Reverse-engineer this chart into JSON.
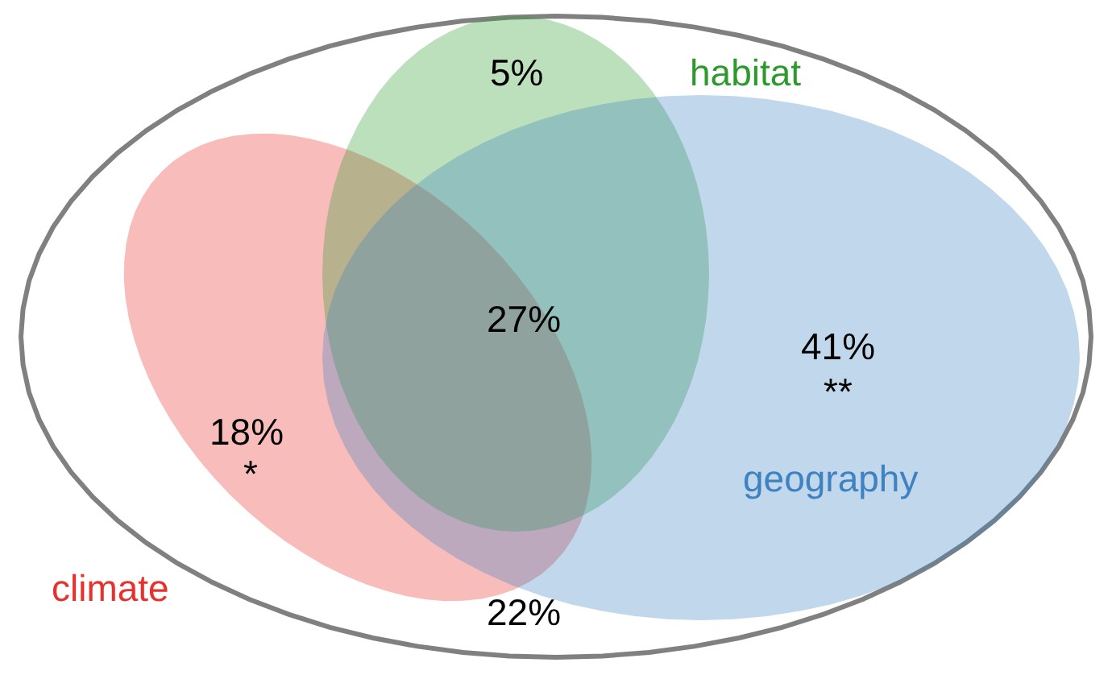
{
  "chart_data": {
    "type": "other",
    "categories": [
      null,
      null,
      null,
      null,
      null
    ],
    "values": [
      5,
      27,
      41,
      18,
      22
    ],
    "value_labels": [
      "5%",
      "27%",
      "41%",
      "18%",
      "22%"
    ],
    "annotations": [
      "climate",
      "habitat",
      "geography",
      "**",
      "*"
    ]
  }
}
